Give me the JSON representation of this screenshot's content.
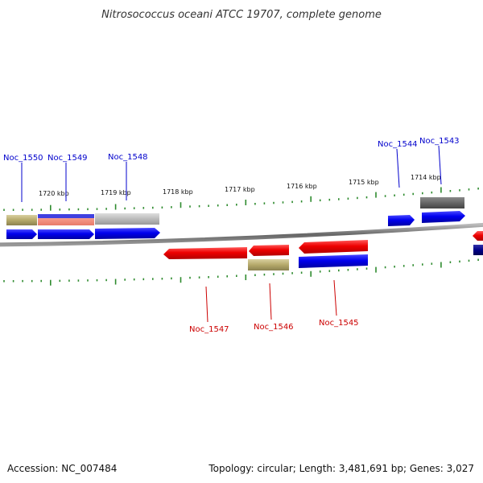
{
  "title": "Nitrosococcus oceani ATCC 19707, complete genome",
  "footer": {
    "accession": "Accession: NC_007484",
    "summary": "Topology: circular; Length: 3,481,691 bp; Genes: 3,027"
  },
  "scale": {
    "tick_labels": [
      "1720 kbp",
      "1719 kbp",
      "1718 kbp",
      "1717 kbp",
      "1716 kbp",
      "1715 kbp",
      "1714 kbp"
    ]
  },
  "genes": {
    "forward": [
      "Noc_1550",
      "Noc_1549",
      "Noc_1548",
      "Noc_1544",
      "Noc_1543"
    ],
    "reverse": [
      "Noc_1547",
      "Noc_1546",
      "Noc_1545"
    ]
  },
  "colors": {
    "forward_label": "#0000cc",
    "reverse_label": "#cc0000",
    "tick": "#2e8b2e",
    "backbone": "#777777",
    "blue_arrow": "#0000ee",
    "red_arrow": "#ee0000",
    "olive_box": "#b5a96a",
    "grey_box": "#bbbbbb",
    "dark_grey_box": "#666666",
    "navy_box": "#000088"
  }
}
